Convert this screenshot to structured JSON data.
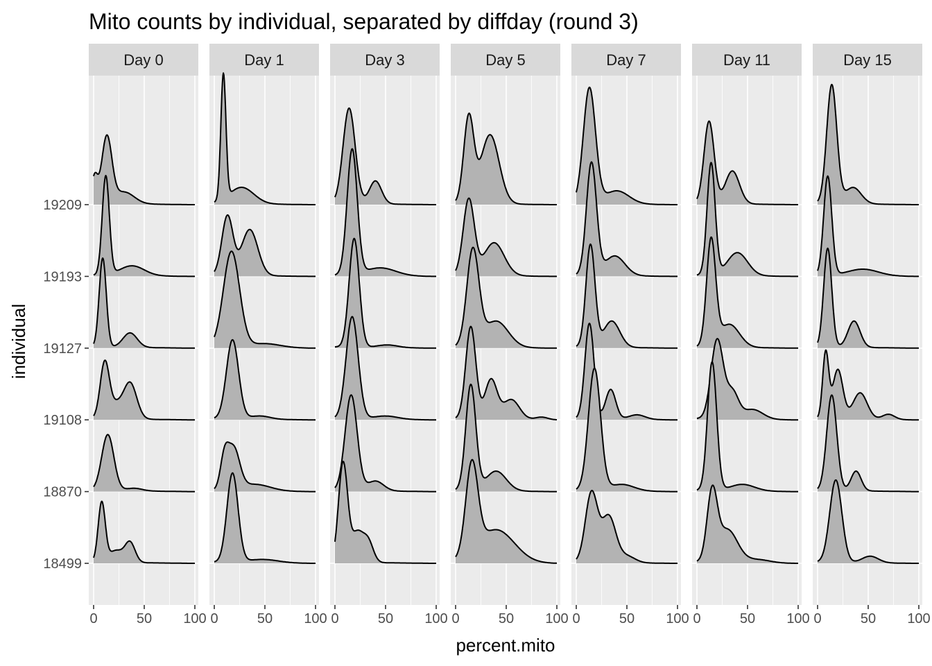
{
  "chart_data": {
    "type": "area",
    "subtype": "ridgeline-density-facets",
    "title": "Mito counts by individual, separated by diffday (round 3)",
    "xlabel": "percent.mito",
    "ylabel": "individual",
    "xlim": [
      0,
      100
    ],
    "x_ticks": [
      0,
      50,
      100
    ],
    "x_tick_labels": [
      "0",
      "50",
      "100"
    ],
    "fill_color": "#B3B3B3",
    "line_color": "#000000",
    "panel_background": "#EBEBEB",
    "strip_background": "#D9D9D9",
    "grid": true,
    "individuals": [
      "18499",
      "18870",
      "19108",
      "19127",
      "19193",
      "19209"
    ],
    "facets": [
      {
        "label": "Day 0",
        "ridges": [
          {
            "individual": "18499",
            "peaks": [
              [
                8,
                0.9,
                3.5
              ],
              [
                22,
                0.18,
                7
              ],
              [
                36,
                0.3,
                5
              ]
            ]
          },
          {
            "individual": "18870",
            "peaks": [
              [
                14,
                0.85,
                6
              ],
              [
                40,
                0.04,
                8
              ]
            ]
          },
          {
            "individual": "19108",
            "peaks": [
              [
                11,
                0.85,
                4.5
              ],
              [
                36,
                0.55,
                6.5
              ],
              [
                22,
                0.2,
                6
              ]
            ]
          },
          {
            "individual": "19127",
            "peaks": [
              [
                9,
                1.35,
                3.5
              ],
              [
                36,
                0.22,
                7
              ]
            ]
          },
          {
            "individual": "19193",
            "peaks": [
              [
                12,
                1.5,
                3.5
              ],
              [
                38,
                0.15,
                12
              ]
            ]
          },
          {
            "individual": "19209",
            "peaks": [
              [
                1,
                0.4,
                3
              ],
              [
                13,
                1.0,
                5
              ],
              [
                30,
                0.18,
                10
              ]
            ]
          }
        ]
      },
      {
        "label": "Day 1",
        "ridges": [
          {
            "individual": "18499",
            "peaks": [
              [
                18,
                1.35,
                5.5
              ],
              [
                48,
                0.05,
                15
              ]
            ]
          },
          {
            "individual": "18870",
            "peaks": [
              [
                10,
                0.45,
                4
              ],
              [
                19,
                0.62,
                6
              ],
              [
                40,
                0.1,
                15
              ]
            ]
          },
          {
            "individual": "19108",
            "peaks": [
              [
                18,
                1.2,
                6
              ],
              [
                45,
                0.05,
                10
              ]
            ]
          },
          {
            "individual": "19127",
            "peaks": [
              [
                17,
                1.45,
                8
              ],
              [
                50,
                0.06,
                15
              ]
            ]
          },
          {
            "individual": "19193",
            "peaks": [
              [
                13,
                0.9,
                5.5
              ],
              [
                35,
                0.7,
                8
              ]
            ]
          },
          {
            "individual": "19209",
            "peaks": [
              [
                9,
                1.9,
                2.5
              ],
              [
                27,
                0.25,
                12
              ]
            ]
          }
        ]
      },
      {
        "label": "Day 3",
        "ridges": [
          {
            "individual": "18499",
            "peaks": [
              [
                8,
                1.5,
                4.5
              ],
              [
                22,
                0.45,
                6
              ],
              [
                33,
                0.3,
                5
              ]
            ]
          },
          {
            "individual": "18870",
            "peaks": [
              [
                16,
                1.45,
                6
              ],
              [
                40,
                0.15,
                8
              ]
            ]
          },
          {
            "individual": "19108",
            "peaks": [
              [
                17,
                1.55,
                6
              ],
              [
                50,
                0.05,
                12
              ]
            ]
          },
          {
            "individual": "19127",
            "peaks": [
              [
                19,
                1.65,
                5
              ],
              [
                52,
                0.04,
                10
              ]
            ]
          },
          {
            "individual": "19193",
            "peaks": [
              [
                17,
                1.9,
                5
              ],
              [
                45,
                0.12,
                15
              ]
            ]
          },
          {
            "individual": "19209",
            "peaks": [
              [
                14,
                1.45,
                6
              ],
              [
                40,
                0.35,
                6
              ]
            ]
          }
        ]
      },
      {
        "label": "Day 5",
        "ridges": [
          {
            "individual": "18499",
            "peaks": [
              [
                16,
                1.35,
                6
              ],
              [
                40,
                0.5,
                18
              ]
            ]
          },
          {
            "individual": "18870",
            "peaks": [
              [
                15,
                1.6,
                5
              ],
              [
                40,
                0.3,
                10
              ]
            ]
          },
          {
            "individual": "19108",
            "peaks": [
              [
                15,
                1.4,
                5
              ],
              [
                35,
                0.6,
                6
              ],
              [
                55,
                0.3,
                8
              ],
              [
                85,
                0.04,
                6
              ]
            ]
          },
          {
            "individual": "19127",
            "peaks": [
              [
                17,
                1.45,
                6
              ],
              [
                40,
                0.4,
                12
              ]
            ]
          },
          {
            "individual": "19193",
            "peaks": [
              [
                13,
                1.15,
                5.5
              ],
              [
                38,
                0.5,
                10
              ]
            ]
          },
          {
            "individual": "19209",
            "peaks": [
              [
                13,
                1.3,
                5
              ],
              [
                34,
                1.05,
                9
              ]
            ]
          }
        ]
      },
      {
        "label": "Day 7",
        "ridges": [
          {
            "individual": "18499",
            "peaks": [
              [
                15,
                1.05,
                6
              ],
              [
                32,
                0.7,
                7
              ],
              [
                50,
                0.1,
                8
              ]
            ]
          },
          {
            "individual": "18870",
            "peaks": [
              [
                18,
                1.85,
                6
              ],
              [
                45,
                0.1,
                12
              ]
            ]
          },
          {
            "individual": "19108",
            "peaks": [
              [
                13,
                1.45,
                4.5
              ],
              [
                34,
                0.45,
                5
              ],
              [
                60,
                0.07,
                8
              ]
            ]
          },
          {
            "individual": "19127",
            "peaks": [
              [
                14,
                1.55,
                4.5
              ],
              [
                35,
                0.4,
                8
              ]
            ]
          },
          {
            "individual": "19193",
            "peaks": [
              [
                15,
                1.7,
                5
              ],
              [
                38,
                0.3,
                10
              ]
            ]
          },
          {
            "individual": "19209",
            "peaks": [
              [
                13,
                1.75,
                6
              ],
              [
                40,
                0.2,
                12
              ]
            ]
          }
        ]
      },
      {
        "label": "Day 11",
        "ridges": [
          {
            "individual": "18499",
            "peaks": [
              [
                15,
                1.0,
                5
              ],
              [
                30,
                0.5,
                10
              ],
              [
                60,
                0.05,
                12
              ]
            ]
          },
          {
            "individual": "18870",
            "peaks": [
              [
                15,
                1.95,
                4.5
              ],
              [
                45,
                0.1,
                12
              ]
            ]
          },
          {
            "individual": "19108",
            "peaks": [
              [
                20,
                1.2,
                6
              ],
              [
                35,
                0.4,
                6
              ],
              [
                55,
                0.15,
                10
              ]
            ]
          },
          {
            "individual": "19127",
            "peaks": [
              [
                14,
                1.6,
                4.5
              ],
              [
                32,
                0.35,
                10
              ]
            ]
          },
          {
            "individual": "19193",
            "peaks": [
              [
                14,
                1.7,
                4
              ],
              [
                40,
                0.35,
                10
              ]
            ]
          },
          {
            "individual": "19209",
            "peaks": [
              [
                12,
                1.25,
                5
              ],
              [
                35,
                0.5,
                7
              ]
            ]
          }
        ]
      },
      {
        "label": "Day 15",
        "ridges": [
          {
            "individual": "18499",
            "peaks": [
              [
                18,
                1.25,
                6
              ],
              [
                52,
                0.1,
                8
              ]
            ]
          },
          {
            "individual": "18870",
            "peaks": [
              [
                14,
                1.45,
                5
              ],
              [
                38,
                0.3,
                5
              ]
            ]
          },
          {
            "individual": "19108",
            "peaks": [
              [
                8,
                1.0,
                3
              ],
              [
                20,
                0.75,
                5
              ],
              [
                42,
                0.4,
                7
              ],
              [
                70,
                0.08,
                6
              ]
            ]
          },
          {
            "individual": "19127",
            "peaks": [
              [
                10,
                1.5,
                4
              ],
              [
                36,
                0.4,
                6
              ]
            ]
          },
          {
            "individual": "19193",
            "peaks": [
              [
                10,
                1.5,
                4
              ],
              [
                45,
                0.1,
                15
              ]
            ]
          },
          {
            "individual": "19209",
            "peaks": [
              [
                14,
                1.8,
                5
              ],
              [
                35,
                0.25,
                8
              ]
            ]
          }
        ]
      }
    ]
  }
}
